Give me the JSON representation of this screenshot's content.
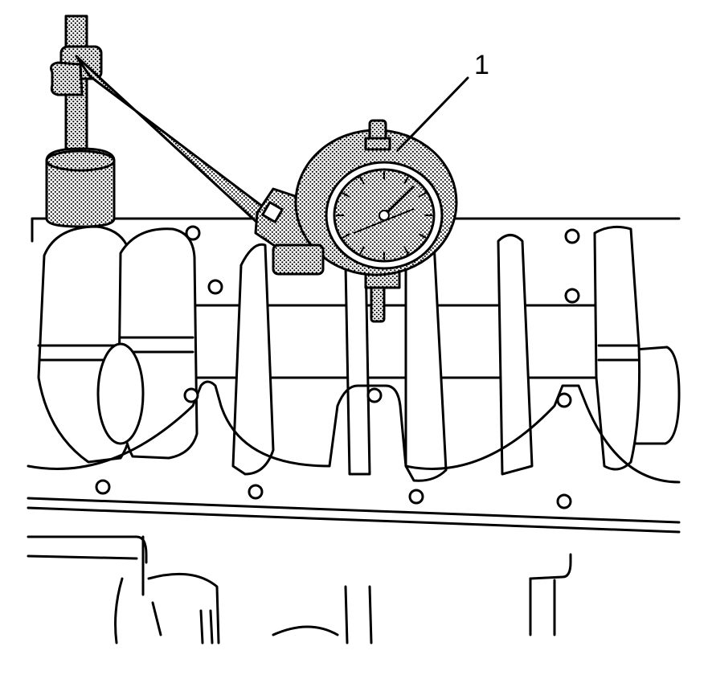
{
  "callouts": [
    {
      "number": "1"
    }
  ],
  "colors": {
    "line": "#000000",
    "background": "#ffffff"
  },
  "icons": {
    "tool": "dial-indicator-icon",
    "assembly": "crankshaft-icon"
  }
}
